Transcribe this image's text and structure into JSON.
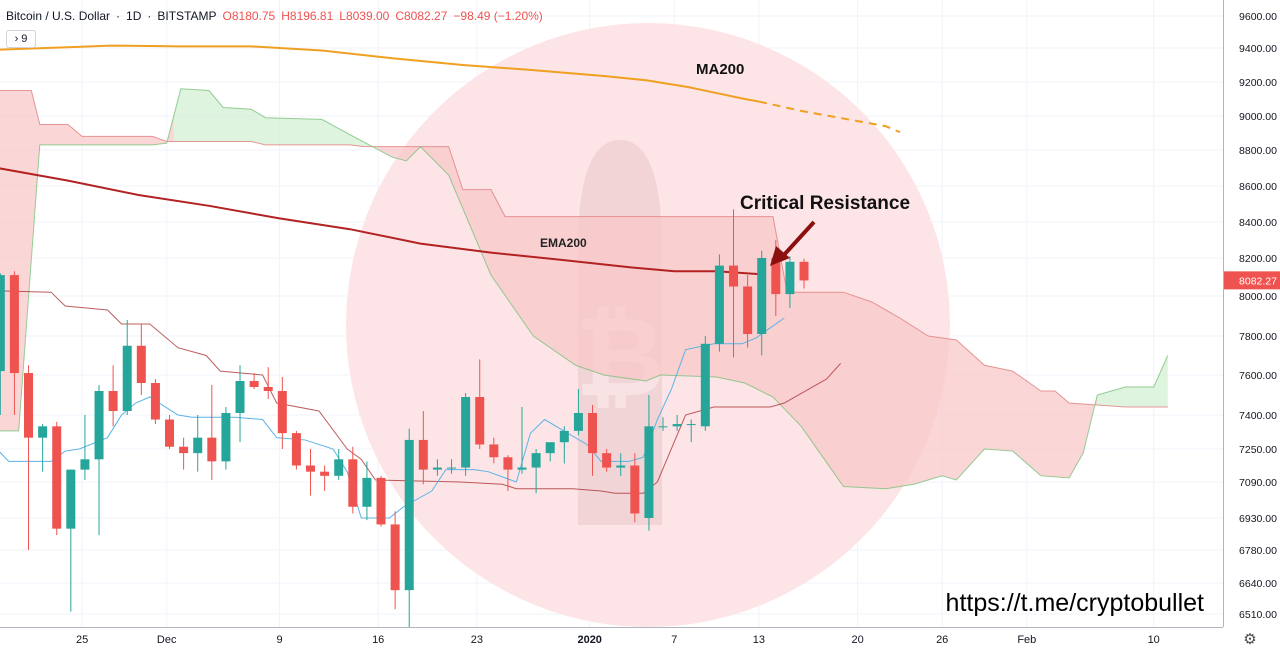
{
  "header": {
    "symbol": "Bitcoin / U.S. Dollar",
    "interval": "1D",
    "exchange": "BITSTAMP",
    "open": "O8180.75",
    "high": "H8196.81",
    "low": "L8039.00",
    "close": "C8082.27",
    "change": "−98.49 (−1.20%)",
    "indicator_count": "9"
  },
  "watermark": "https://t.me/cryptobullet",
  "colors": {
    "up": "#26a69a",
    "down": "#ef5350",
    "ma200": "#f0a020",
    "ema200": "#b22222",
    "tenkan": "#5ab4e6",
    "kijun": "#a52a2a",
    "cloud_red": "#f8c8c8",
    "cloud_green": "#d4f0d4",
    "highlight_circle": "#fde4e6",
    "price_badge": "#ef5350",
    "annotation_arrow": "#8b1010"
  },
  "chart_data": {
    "type": "candlestick",
    "title": "Bitcoin / U.S. Dollar · 1D · BITSTAMP",
    "ylim": [
      6450,
      9700
    ],
    "y_ticks": [
      "9600.00",
      "9400.00",
      "9200.00",
      "9000.00",
      "8800.00",
      "8600.00",
      "8400.00",
      "8200.00",
      "8000.00",
      "7800.00",
      "7600.00",
      "7400.00",
      "7250.00",
      "7090.00",
      "6930.00",
      "6780.00",
      "6640.00",
      "6510.00"
    ],
    "x_ticks": [
      {
        "label": "25",
        "day": 1
      },
      {
        "label": "Dec",
        "day": 7
      },
      {
        "label": "9",
        "day": 15
      },
      {
        "label": "16",
        "day": 22
      },
      {
        "label": "23",
        "day": 29
      },
      {
        "label": "2020",
        "day": 37
      },
      {
        "label": "7",
        "day": 43
      },
      {
        "label": "13",
        "day": 49
      },
      {
        "label": "20",
        "day": 56
      },
      {
        "label": "26",
        "day": 62
      },
      {
        "label": "Feb",
        "day": 68
      },
      {
        "label": "10",
        "day": 77
      }
    ],
    "last_price": "8082.27",
    "annotations": [
      {
        "text": "MA200"
      },
      {
        "text": "EMA200"
      },
      {
        "text": "Critical Resistance"
      }
    ],
    "candles": [
      [
        7620,
        8120,
        7400,
        8110
      ],
      [
        8110,
        8130,
        7400,
        7610
      ],
      [
        7610,
        7650,
        6780,
        7300
      ],
      [
        7300,
        7360,
        7140,
        7350
      ],
      [
        7350,
        7370,
        6850,
        6880
      ],
      [
        6880,
        7150,
        6520,
        7150
      ],
      [
        7150,
        7400,
        7100,
        7200
      ],
      [
        7200,
        7550,
        6850,
        7520
      ],
      [
        7520,
        7650,
        7350,
        7420
      ],
      [
        7420,
        7880,
        7400,
        7750
      ],
      [
        7750,
        7860,
        7500,
        7560
      ],
      [
        7560,
        7580,
        7360,
        7380
      ],
      [
        7380,
        7400,
        7250,
        7260
      ],
      [
        7260,
        7300,
        7150,
        7230
      ],
      [
        7230,
        7400,
        7140,
        7300
      ],
      [
        7300,
        7550,
        7100,
        7190
      ],
      [
        7190,
        7440,
        7150,
        7410
      ],
      [
        7410,
        7650,
        7280,
        7570
      ],
      [
        7570,
        7610,
        7530,
        7540
      ],
      [
        7540,
        7640,
        7480,
        7520
      ],
      [
        7520,
        7590,
        7250,
        7320
      ],
      [
        7320,
        7330,
        7150,
        7170
      ],
      [
        7170,
        7250,
        7030,
        7140
      ],
      [
        7140,
        7170,
        7050,
        7120
      ],
      [
        7120,
        7250,
        7100,
        7200
      ],
      [
        7200,
        7260,
        6950,
        6980
      ],
      [
        6980,
        7190,
        6920,
        7110
      ],
      [
        7110,
        7120,
        6890,
        6900
      ],
      [
        6900,
        6960,
        6530,
        6610
      ],
      [
        6610,
        7340,
        6440,
        7290
      ],
      [
        7290,
        7420,
        7080,
        7150
      ],
      [
        7150,
        7200,
        7120,
        7160
      ],
      [
        7160,
        7200,
        7130,
        7160
      ],
      [
        7160,
        7510,
        7120,
        7490
      ],
      [
        7490,
        7680,
        7250,
        7270
      ],
      [
        7270,
        7300,
        7180,
        7210
      ],
      [
        7210,
        7220,
        7050,
        7150
      ],
      [
        7150,
        7440,
        7130,
        7160
      ],
      [
        7160,
        7250,
        7040,
        7230
      ],
      [
        7230,
        7260,
        7190,
        7280
      ],
      [
        7280,
        7350,
        7180,
        7330
      ],
      [
        7330,
        7530,
        7310,
        7410
      ],
      [
        7410,
        7450,
        7120,
        7230
      ],
      [
        7230,
        7250,
        7140,
        7160
      ],
      [
        7160,
        7230,
        7120,
        7170
      ],
      [
        7170,
        7230,
        6910,
        6950
      ],
      [
        6930,
        7500,
        6870,
        7350
      ],
      [
        7350,
        7390,
        7330,
        7350
      ],
      [
        7350,
        7400,
        7330,
        7360
      ],
      [
        7360,
        7380,
        7280,
        7360
      ],
      [
        7350,
        7800,
        7330,
        7760
      ],
      [
        7760,
        8220,
        7720,
        8160
      ],
      [
        8160,
        8470,
        7690,
        8050
      ],
      [
        8050,
        8110,
        7740,
        7810
      ],
      [
        7810,
        8240,
        7700,
        8200
      ],
      [
        8200,
        8300,
        7900,
        8010
      ],
      [
        8010,
        8210,
        7940,
        8180
      ],
      [
        8180,
        8197,
        8039,
        8082
      ]
    ],
    "series": [
      {
        "name": "MA200"
      },
      {
        "name": "EMA200"
      }
    ]
  }
}
